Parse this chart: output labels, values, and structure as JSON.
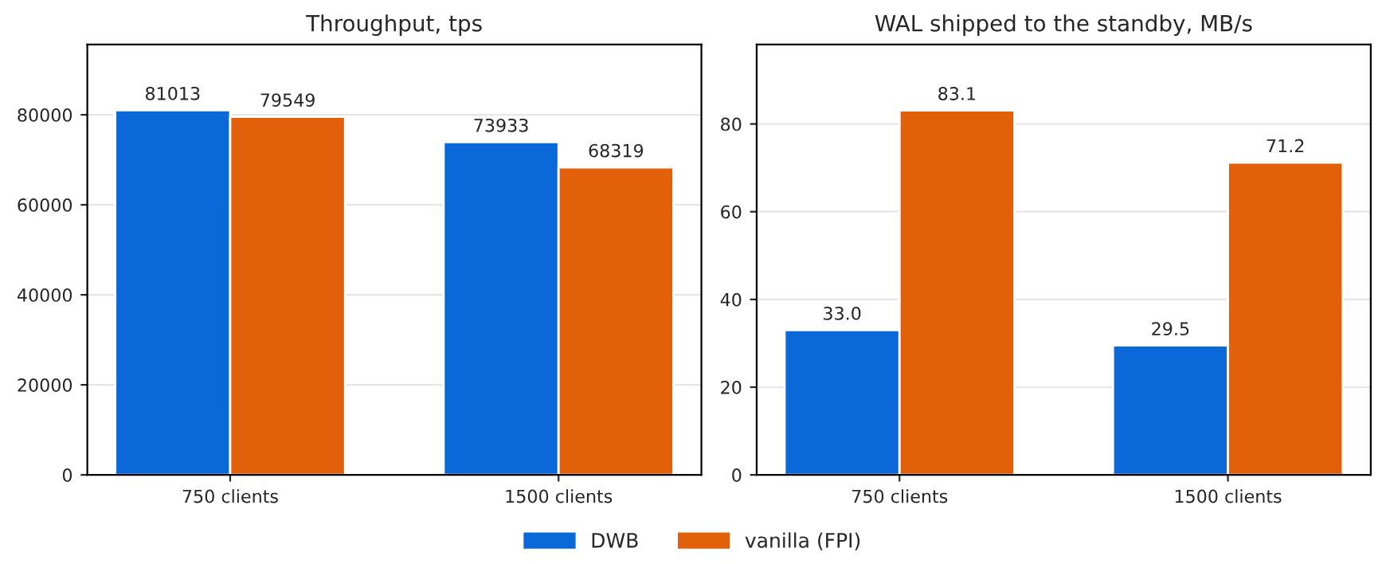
{
  "chart_data": [
    {
      "type": "bar",
      "title": "Throughput, tps",
      "categories": [
        "750 clients",
        "1500 clients"
      ],
      "series": [
        {
          "name": "DWB",
          "color": "#0a68d8",
          "values": [
            81013,
            73933
          ]
        },
        {
          "name": "vanilla (FPI)",
          "color": "#e3600a",
          "values": [
            79549,
            68319
          ]
        }
      ],
      "ylim": [
        0,
        95600
      ],
      "yticks": [
        0,
        20000,
        40000,
        60000,
        80000
      ],
      "grid": "y",
      "data_labels": true,
      "legend": "bottom"
    },
    {
      "type": "bar",
      "title": "WAL shipped to the standby, MB/s",
      "categories": [
        "750 clients",
        "1500 clients"
      ],
      "series": [
        {
          "name": "DWB",
          "color": "#0a68d8",
          "values": [
            33.0,
            29.5
          ],
          "value_labels": [
            "33.0",
            "29.5"
          ]
        },
        {
          "name": "vanilla (FPI)",
          "color": "#e3600a",
          "values": [
            83.1,
            71.2
          ],
          "value_labels": [
            "83.1",
            "71.2"
          ]
        }
      ],
      "ylim": [
        0,
        98.1
      ],
      "yticks": [
        0,
        20,
        40,
        60,
        80
      ],
      "grid": "y"
    }
  ]
}
